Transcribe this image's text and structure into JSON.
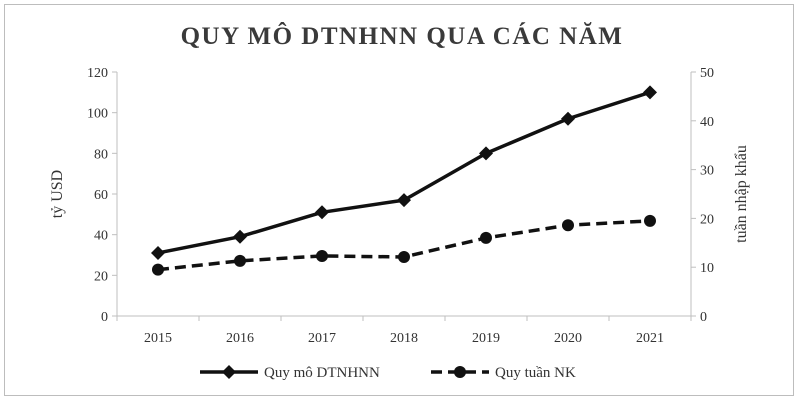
{
  "chart_data": {
    "type": "line",
    "title": "QUY MÔ DTNHNN QUA CÁC NĂM",
    "categories": [
      "2015",
      "2016",
      "2017",
      "2018",
      "2019",
      "2020",
      "2021"
    ],
    "ylabel_left": "tỷ USD",
    "ylabel_right": "tuần nhập khẩu",
    "ylim_left": [
      0,
      120
    ],
    "yticks_left": [
      "0",
      "20",
      "40",
      "60",
      "80",
      "100",
      "120"
    ],
    "ylim_right": [
      0,
      50
    ],
    "yticks_right": [
      "0",
      "10",
      "20",
      "30",
      "40",
      "50"
    ],
    "grid": false,
    "legend_position": "bottom",
    "series": [
      {
        "name": "Quy mô DTNHNN",
        "axis": "left",
        "style": "solid",
        "marker": "diamond",
        "color": "#111111",
        "values": [
          31,
          39,
          51,
          57,
          80,
          97,
          110
        ]
      },
      {
        "name": "Quy tuần NK",
        "axis": "right",
        "style": "dashed",
        "marker": "circle",
        "color": "#111111",
        "values": [
          9.5,
          11.3,
          12.3,
          12.1,
          16,
          18.6,
          19.5
        ]
      }
    ]
  }
}
